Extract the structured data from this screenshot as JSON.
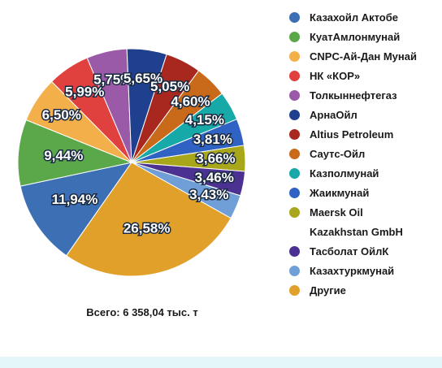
{
  "chart_data": {
    "type": "pie",
    "categories": [
      "Казахойл Актобе",
      "КуатАмлонмунай",
      "CNPC-Ай-Дан Мунай",
      "НК «КОР»",
      "Толкыннефтегаз",
      "АрнаОйл",
      "Altius Petroleum",
      "Саутс-Ойл",
      "Казполмунай",
      "Жаикмунай",
      "Maersk Oil Kazakhstan GmbH",
      "Тасболат ОйлК",
      "Казахтуркмунай",
      "Другие"
    ],
    "values": [
      11.94,
      9.44,
      6.5,
      5.99,
      5.75,
      5.65,
      5.05,
      4.6,
      4.15,
      3.81,
      3.66,
      3.46,
      3.43,
      26.58
    ],
    "value_labels": [
      "11,94%",
      "9,44%",
      "6,50%",
      "5,99%",
      "5,75%",
      "5,65%",
      "5,05%",
      "4,60%",
      "4,15%",
      "3,81%",
      "3,66%",
      "3,46%",
      "3,43%",
      "26,58%"
    ],
    "colors": [
      "#3c6fb4",
      "#5aa84a",
      "#f3b04a",
      "#e0403e",
      "#9a5aa7",
      "#1f3f8f",
      "#a8281f",
      "#c86a1a",
      "#17a8a8",
      "#2f62c2",
      "#a8a61a",
      "#4b3191",
      "#6f9fd6",
      "#e0a02a"
    ],
    "annotation": "Всего: 6 358,04 тыс. т",
    "legend": "right"
  }
}
